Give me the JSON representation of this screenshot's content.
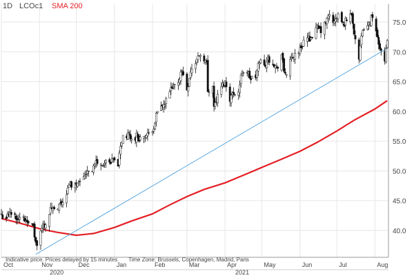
{
  "header": {
    "interval": "1D",
    "symbol": "LCOc1",
    "indicator": "SMA 200"
  },
  "footer": {
    "disclaimer": "Indicative price. Prices delayed by 15 minutes",
    "timezone": "Time Zone: Brussels, Copenhagen, Madrid, Paris"
  },
  "colors": {
    "candle_up": "#ffffff",
    "candle_down": "#111111",
    "sma": "#e31e24",
    "trendline": "#5aa9e0",
    "grid": "#e6e6e6",
    "axis_text": "#444444",
    "frame": "#999999"
  },
  "chart_data": {
    "type": "candlestick",
    "title": "",
    "xlabel": "",
    "ylabel": "",
    "grid": true,
    "y_axis_side": "right",
    "ylim": [
      35.5,
      78
    ],
    "xlim": [
      "2020-10-01",
      "2021-08-12"
    ],
    "y_ticks": [
      "40.0",
      "45.0",
      "50.0",
      "55.0",
      "60.0",
      "65.0",
      "70.0",
      "75.0"
    ],
    "x_ticks": [
      {
        "date": "2020-10-01",
        "label": "Oct"
      },
      {
        "date": "2020-11-01",
        "label": "Nov"
      },
      {
        "date": "2020-12-01",
        "label": "Dec"
      },
      {
        "date": "2021-01-01",
        "label": "Jan"
      },
      {
        "date": "2021-02-01",
        "label": "Feb"
      },
      {
        "date": "2021-03-01",
        "label": "Mar"
      },
      {
        "date": "2021-04-01",
        "label": "Apr"
      },
      {
        "date": "2021-05-01",
        "label": "May"
      },
      {
        "date": "2021-06-01",
        "label": "Jun"
      },
      {
        "date": "2021-07-01",
        "label": "Jul"
      },
      {
        "date": "2021-08-01",
        "label": "Aug"
      }
    ],
    "years": [
      {
        "date": "2020-11-15",
        "label": "2020"
      },
      {
        "date": "2021-04-15",
        "label": "2021"
      }
    ],
    "close_series": [
      [
        "2020-10-01",
        42.6
      ],
      [
        "2020-10-05",
        42.2
      ],
      [
        "2020-10-09",
        42.9
      ],
      [
        "2020-10-13",
        42.4
      ],
      [
        "2020-10-16",
        42.0
      ],
      [
        "2020-10-20",
        41.8
      ],
      [
        "2020-10-23",
        41.8
      ],
      [
        "2020-10-27",
        40.4
      ],
      [
        "2020-10-29",
        37.8
      ],
      [
        "2020-10-30",
        37.5
      ],
      [
        "2020-11-02",
        39.6
      ],
      [
        "2020-11-04",
        40.9
      ],
      [
        "2020-11-06",
        41.2
      ],
      [
        "2020-11-09",
        43.0
      ],
      [
        "2020-11-11",
        43.8
      ],
      [
        "2020-11-13",
        43.1
      ],
      [
        "2020-11-16",
        43.6
      ],
      [
        "2020-11-18",
        44.3
      ],
      [
        "2020-11-20",
        44.9
      ],
      [
        "2020-11-24",
        46.9
      ],
      [
        "2020-11-26",
        47.8
      ],
      [
        "2020-11-30",
        47.6
      ],
      [
        "2020-12-03",
        48.7
      ],
      [
        "2020-12-07",
        48.8
      ],
      [
        "2020-12-10",
        50.2
      ],
      [
        "2020-12-14",
        50.3
      ],
      [
        "2020-12-17",
        51.5
      ],
      [
        "2020-12-21",
        50.9
      ],
      [
        "2020-12-24",
        51.3
      ],
      [
        "2020-12-29",
        51.1
      ],
      [
        "2020-12-31",
        51.8
      ],
      [
        "2021-01-04",
        51.1
      ],
      [
        "2021-01-06",
        54.3
      ],
      [
        "2021-01-08",
        55.9
      ],
      [
        "2021-01-11",
        55.7
      ],
      [
        "2021-01-13",
        56.1
      ],
      [
        "2021-01-15",
        55.1
      ],
      [
        "2021-01-19",
        55.9
      ],
      [
        "2021-01-22",
        55.4
      ],
      [
        "2021-01-26",
        55.9
      ],
      [
        "2021-01-29",
        55.9
      ],
      [
        "2021-02-02",
        57.5
      ],
      [
        "2021-02-04",
        59.3
      ],
      [
        "2021-02-08",
        60.6
      ],
      [
        "2021-02-11",
        61.1
      ],
      [
        "2021-02-15",
        63.3
      ],
      [
        "2021-02-18",
        63.9
      ],
      [
        "2021-02-22",
        65.2
      ],
      [
        "2021-02-25",
        66.9
      ],
      [
        "2021-03-01",
        63.7
      ],
      [
        "2021-03-04",
        66.7
      ],
      [
        "2021-03-08",
        68.2
      ],
      [
        "2021-03-11",
        69.6
      ],
      [
        "2021-03-15",
        68.9
      ],
      [
        "2021-03-17",
        68.0
      ],
      [
        "2021-03-18",
        63.3
      ],
      [
        "2021-03-22",
        64.6
      ],
      [
        "2021-03-23",
        60.8
      ],
      [
        "2021-03-25",
        61.9
      ],
      [
        "2021-03-29",
        64.1
      ],
      [
        "2021-04-01",
        64.9
      ],
      [
        "2021-04-05",
        62.2
      ],
      [
        "2021-04-08",
        63.2
      ],
      [
        "2021-04-12",
        63.3
      ],
      [
        "2021-04-15",
        66.9
      ],
      [
        "2021-04-19",
        66.6
      ],
      [
        "2021-04-22",
        65.4
      ],
      [
        "2021-04-26",
        65.7
      ],
      [
        "2021-04-29",
        68.6
      ],
      [
        "2021-05-03",
        67.6
      ],
      [
        "2021-05-06",
        68.9
      ],
      [
        "2021-05-10",
        68.3
      ],
      [
        "2021-05-13",
        67.1
      ],
      [
        "2021-05-17",
        69.5
      ],
      [
        "2021-05-19",
        66.7
      ],
      [
        "2021-05-21",
        66.4
      ],
      [
        "2021-05-25",
        68.7
      ],
      [
        "2021-05-28",
        69.6
      ],
      [
        "2021-06-01",
        70.3
      ],
      [
        "2021-06-04",
        71.9
      ],
      [
        "2021-06-08",
        72.2
      ],
      [
        "2021-06-11",
        72.7
      ],
      [
        "2021-06-15",
        73.9
      ],
      [
        "2021-06-18",
        73.5
      ],
      [
        "2021-06-22",
        74.8
      ],
      [
        "2021-06-25",
        76.2
      ],
      [
        "2021-06-29",
        74.8
      ],
      [
        "2021-07-02",
        76.2
      ],
      [
        "2021-07-06",
        74.5
      ],
      [
        "2021-07-09",
        75.5
      ],
      [
        "2021-07-13",
        76.5
      ],
      [
        "2021-07-15",
        73.5
      ],
      [
        "2021-07-19",
        68.6
      ],
      [
        "2021-07-21",
        72.2
      ],
      [
        "2021-07-23",
        74.1
      ],
      [
        "2021-07-27",
        74.5
      ],
      [
        "2021-07-30",
        76.3
      ],
      [
        "2021-08-03",
        72.4
      ],
      [
        "2021-08-05",
        70.8
      ],
      [
        "2021-08-09",
        69.0
      ],
      [
        "2021-08-11",
        71.4
      ]
    ],
    "sma200": [
      [
        "2020-10-01",
        42.0
      ],
      [
        "2020-10-15",
        41.3
      ],
      [
        "2020-11-01",
        40.3
      ],
      [
        "2020-11-15",
        39.7
      ],
      [
        "2020-12-01",
        39.2
      ],
      [
        "2020-12-15",
        39.5
      ],
      [
        "2021-01-01",
        40.5
      ],
      [
        "2021-01-15",
        41.6
      ],
      [
        "2021-02-01",
        42.8
      ],
      [
        "2021-02-15",
        44.3
      ],
      [
        "2021-03-01",
        45.7
      ],
      [
        "2021-03-15",
        46.9
      ],
      [
        "2021-04-01",
        48.0
      ],
      [
        "2021-04-15",
        49.2
      ],
      [
        "2021-05-01",
        50.6
      ],
      [
        "2021-05-15",
        51.8
      ],
      [
        "2021-06-01",
        53.3
      ],
      [
        "2021-06-15",
        54.8
      ],
      [
        "2021-07-01",
        56.7
      ],
      [
        "2021-07-15",
        58.5
      ],
      [
        "2021-08-01",
        60.4
      ],
      [
        "2021-08-11",
        61.8
      ]
    ],
    "trendline": [
      [
        "2020-10-29",
        36.0
      ],
      [
        "2021-08-12",
        70.7
      ]
    ]
  }
}
